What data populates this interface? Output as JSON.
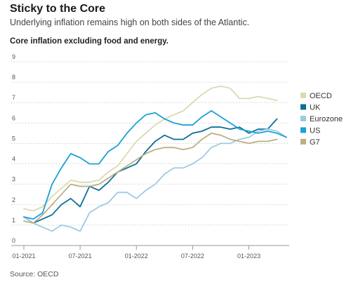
{
  "title": "Sticky to the Core",
  "subtitle": "Underlying inflation remains high on both sides of the Atlantic.",
  "chart_heading": "Core inflation excluding food and energy.",
  "source": "Source: OECD",
  "chart_data": {
    "type": "line",
    "ylim": [
      0,
      9
    ],
    "yticks": [
      0,
      1,
      2,
      3,
      4,
      5,
      6,
      7,
      8,
      9
    ],
    "grid": true,
    "legend_position": "right",
    "x": [
      "2021-01",
      "2021-02",
      "2021-03",
      "2021-04",
      "2021-05",
      "2021-06",
      "2021-07",
      "2021-08",
      "2021-09",
      "2021-10",
      "2021-11",
      "2021-12",
      "2022-01",
      "2022-02",
      "2022-03",
      "2022-04",
      "2022-05",
      "2022-06",
      "2022-07",
      "2022-08",
      "2022-09",
      "2022-10",
      "2022-11",
      "2022-12",
      "2023-01",
      "2023-02",
      "2023-03",
      "2023-04",
      "2023-05"
    ],
    "xticks": [
      {
        "index": 0,
        "label": "01-2021"
      },
      {
        "index": 6,
        "label": "07-2021"
      },
      {
        "index": 12,
        "label": "01-2022"
      },
      {
        "index": 18,
        "label": "07-2022"
      },
      {
        "index": 24,
        "label": "01-2023"
      }
    ],
    "series": [
      {
        "name": "OECD",
        "color": "#dcd9b4",
        "values": [
          1.8,
          1.7,
          1.9,
          2.4,
          2.8,
          3.2,
          3.1,
          3.1,
          3.2,
          3.6,
          3.9,
          4.5,
          5.1,
          5.5,
          5.9,
          6.2,
          6.4,
          6.6,
          7.0,
          7.4,
          7.7,
          7.8,
          7.7,
          7.2,
          7.2,
          7.3,
          7.2,
          7.1,
          null
        ]
      },
      {
        "name": "UK",
        "color": "#0b6f99",
        "values": [
          1.4,
          1.1,
          1.3,
          1.5,
          2.0,
          2.3,
          1.9,
          2.9,
          2.7,
          3.1,
          3.6,
          3.8,
          4.0,
          4.6,
          5.1,
          5.4,
          5.2,
          5.2,
          5.5,
          5.6,
          5.8,
          5.8,
          5.7,
          5.8,
          5.5,
          5.7,
          5.7,
          6.2,
          null
        ]
      },
      {
        "name": "Eurozone",
        "color": "#9ccbe4",
        "values": [
          1.4,
          1.1,
          0.9,
          0.7,
          1.0,
          0.9,
          0.7,
          1.6,
          1.9,
          2.1,
          2.6,
          2.6,
          2.3,
          2.7,
          3.0,
          3.5,
          3.8,
          3.8,
          4.0,
          4.3,
          4.8,
          5.0,
          5.0,
          5.2,
          5.3,
          5.6,
          5.7,
          5.6,
          5.3
        ]
      },
      {
        "name": "US",
        "color": "#1aa1d8",
        "values": [
          1.4,
          1.3,
          1.6,
          3.0,
          3.8,
          4.5,
          4.3,
          4.0,
          4.0,
          4.6,
          4.9,
          5.5,
          6.0,
          6.4,
          6.5,
          6.2,
          6.0,
          5.9,
          5.9,
          6.3,
          6.6,
          6.3,
          6.0,
          5.7,
          5.6,
          5.5,
          5.6,
          5.5,
          5.3
        ]
      },
      {
        "name": "G7",
        "color": "#bcae82",
        "values": [
          1.2,
          1.1,
          1.5,
          2.0,
          2.5,
          3.0,
          2.9,
          2.9,
          3.0,
          3.3,
          3.6,
          3.9,
          4.2,
          4.5,
          4.7,
          4.8,
          4.8,
          4.7,
          4.8,
          5.2,
          5.5,
          5.4,
          5.2,
          5.1,
          5.0,
          5.1,
          5.1,
          5.2,
          null
        ]
      }
    ]
  }
}
